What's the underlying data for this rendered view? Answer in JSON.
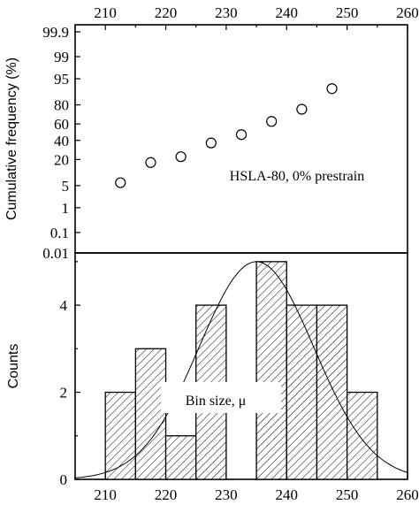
{
  "chart_data": [
    {
      "type": "scatter",
      "ylabel": "Cumulative frequency (%)",
      "annotation": "HSLA-80, 0% prestrain",
      "x_ticks": [
        "210",
        "220",
        "230",
        "240",
        "250",
        "260"
      ],
      "y_ticks": [
        "0.01",
        "0.1",
        "1",
        "5",
        "20",
        "40",
        "60",
        "80",
        "95",
        "99",
        "99.9"
      ],
      "xlim": [
        205,
        260
      ],
      "y_scale": "normal-probability",
      "points": [
        {
          "x": 212.5,
          "y": 6
        },
        {
          "x": 217.5,
          "y": 17.5
        },
        {
          "x": 222.5,
          "y": 22.5
        },
        {
          "x": 227.5,
          "y": 37
        },
        {
          "x": 232.5,
          "y": 47
        },
        {
          "x": 237.5,
          "y": 63
        },
        {
          "x": 242.5,
          "y": 76
        },
        {
          "x": 247.5,
          "y": 91
        }
      ]
    },
    {
      "type": "bar",
      "ylabel": "Counts",
      "annotation": "Bin size, μ",
      "x_ticks": [
        "210",
        "220",
        "230",
        "240",
        "250",
        "260"
      ],
      "y_ticks": [
        "0",
        "2",
        "4"
      ],
      "xlim": [
        205,
        260
      ],
      "ylim": [
        0,
        5.2
      ],
      "bin_width": 5,
      "bins": [
        {
          "x0": 210,
          "count": 2
        },
        {
          "x0": 215,
          "count": 3
        },
        {
          "x0": 220,
          "count": 1
        },
        {
          "x0": 225,
          "count": 4
        },
        {
          "x0": 230,
          "count": 0
        },
        {
          "x0": 235,
          "count": 5
        },
        {
          "x0": 240,
          "count": 4
        },
        {
          "x0": 245,
          "count": 4
        },
        {
          "x0": 250,
          "count": 2
        }
      ],
      "fit_curve": {
        "type": "normal",
        "mean": 235,
        "sd": 9.5,
        "peak": 5.0
      }
    }
  ]
}
